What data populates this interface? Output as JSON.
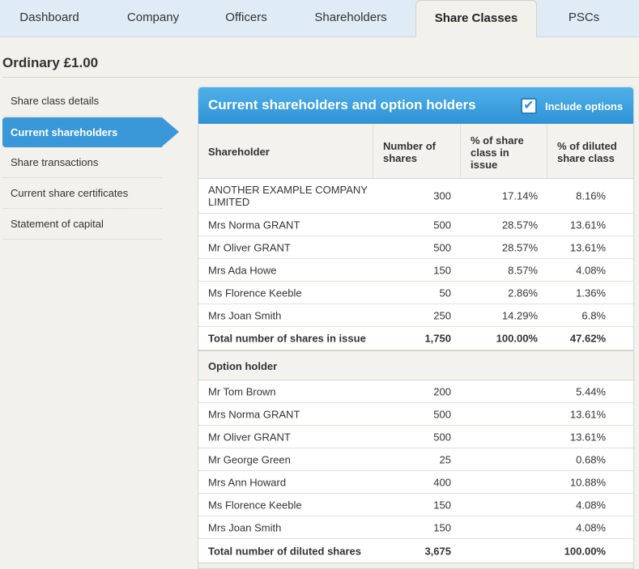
{
  "tabs": [
    {
      "label": "Dashboard"
    },
    {
      "label": "Company"
    },
    {
      "label": "Officers"
    },
    {
      "label": "Shareholders"
    },
    {
      "label": "Share Classes",
      "active": true
    },
    {
      "label": "PSCs"
    }
  ],
  "page": {
    "title": "Ordinary £1.00"
  },
  "sidebar": {
    "items": [
      {
        "label": "Share class details"
      },
      {
        "label": "Current shareholders",
        "active": true
      },
      {
        "label": "Share transactions"
      },
      {
        "label": "Current share certificates"
      },
      {
        "label": "Statement of capital"
      }
    ]
  },
  "panel": {
    "title": "Current shareholders and option holders",
    "include_options_label": "Include options",
    "include_options_checked": "✔",
    "columns": {
      "shareholder": "Shareholder",
      "shares_line1": "Number of",
      "shares_line2": "shares",
      "pct_line1": "% of share",
      "pct_line2": "class in",
      "pct_line3": "issue",
      "diluted_line1": "% of diluted",
      "diluted_line2": "share class"
    },
    "shareholders": [
      {
        "name": "ANOTHER EXAMPLE COMPANY LIMITED",
        "shares": "300",
        "pct": "17.14%",
        "diluted": "8.16%"
      },
      {
        "name": "Mrs Norma GRANT",
        "shares": "500",
        "pct": "28.57%",
        "diluted": "13.61%"
      },
      {
        "name": "Mr Oliver GRANT",
        "shares": "500",
        "pct": "28.57%",
        "diluted": "13.61%"
      },
      {
        "name": "Mrs Ada Howe",
        "shares": "150",
        "pct": "8.57%",
        "diluted": "4.08%"
      },
      {
        "name": "Ms Florence Keeble",
        "shares": "50",
        "pct": "2.86%",
        "diluted": "1.36%"
      },
      {
        "name": "Mrs Joan Smith",
        "shares": "250",
        "pct": "14.29%",
        "diluted": "6.8%"
      }
    ],
    "issue_total": {
      "label": "Total number of shares in issue",
      "shares": "1,750",
      "pct": "100.00%",
      "diluted": "47.62%"
    },
    "option_holder_heading": "Option holder",
    "option_holders": [
      {
        "name": "Mr Tom Brown",
        "shares": "200",
        "diluted": "5.44%"
      },
      {
        "name": "Mrs Norma GRANT",
        "shares": "500",
        "diluted": "13.61%"
      },
      {
        "name": "Mr Oliver GRANT",
        "shares": "500",
        "diluted": "13.61%"
      },
      {
        "name": "Mr George Green",
        "shares": "25",
        "diluted": "0.68%"
      },
      {
        "name": "Mrs Ann Howard",
        "shares": "400",
        "diluted": "10.88%"
      },
      {
        "name": "Ms Florence Keeble",
        "shares": "150",
        "diluted": "4.08%"
      },
      {
        "name": "Mrs Joan Smith",
        "shares": "150",
        "diluted": "4.08%"
      }
    ],
    "diluted_total": {
      "label": "Total number of diluted shares",
      "shares": "3,675",
      "diluted": "100.00%"
    }
  },
  "colors": {
    "tab_bar": "#dfecf6",
    "accent_blue": "#3a98d8",
    "content_bg": "#f2f1ec"
  }
}
